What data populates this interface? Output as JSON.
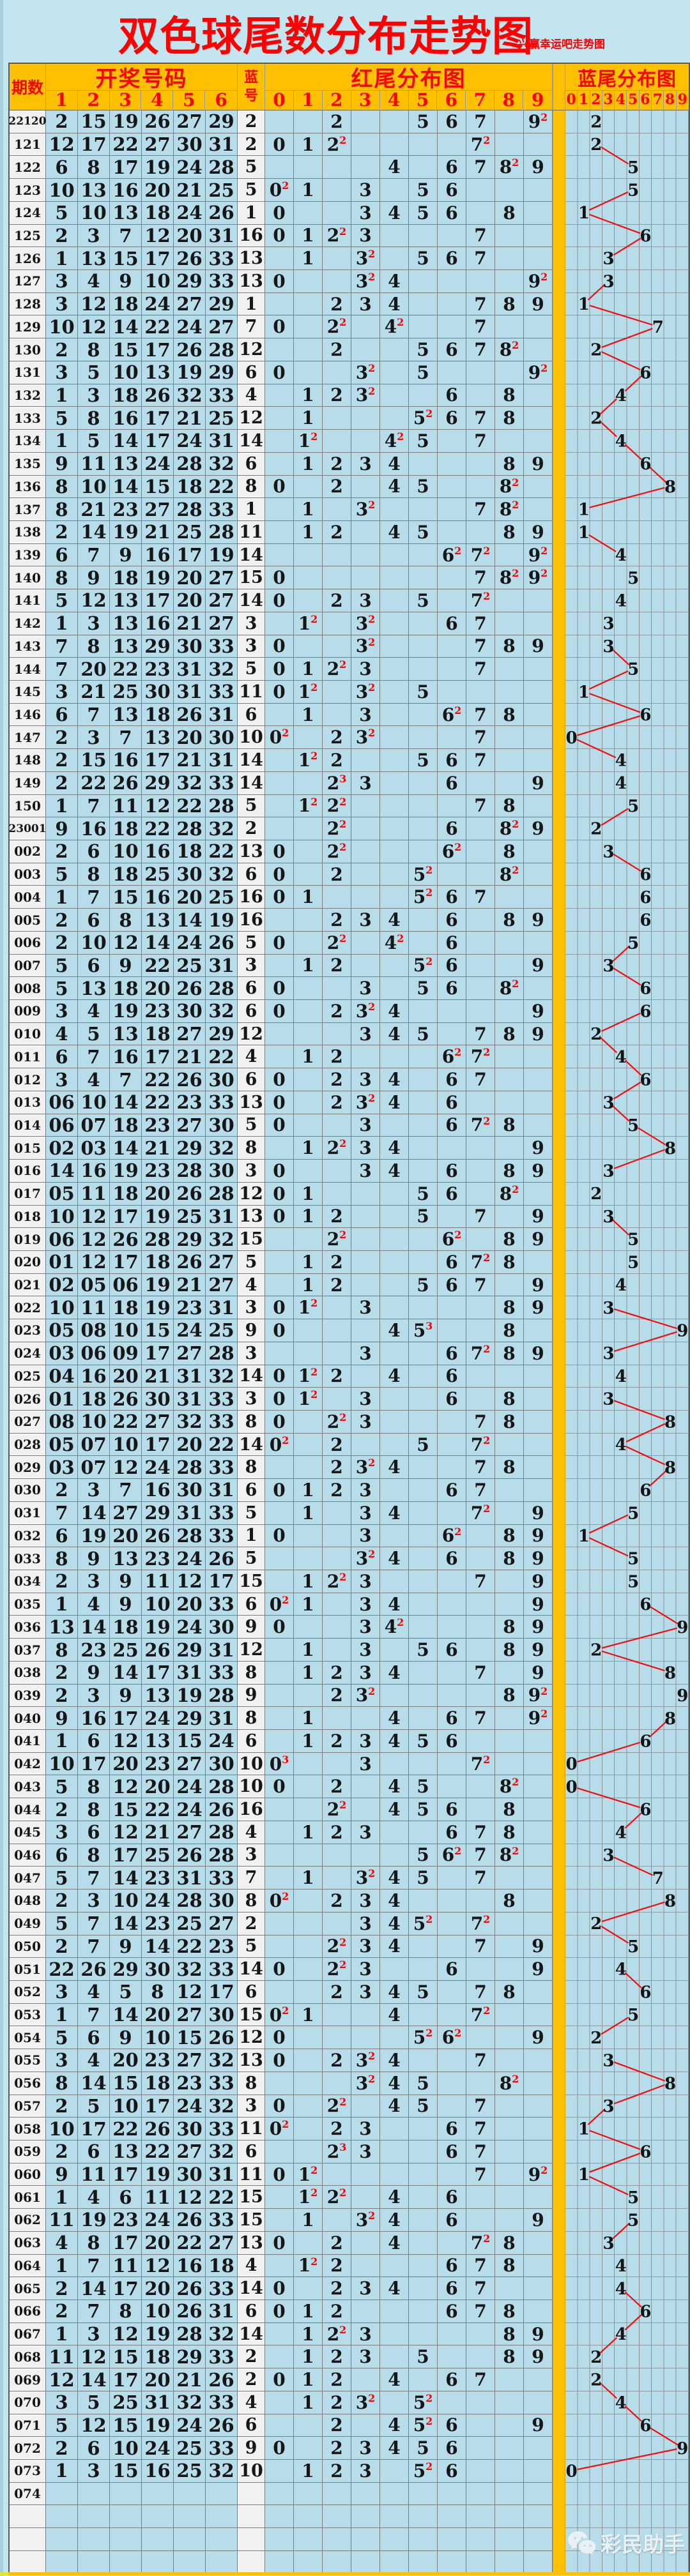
{
  "title": "双色球尾数分布走势图",
  "subtitle": "兴赢幸运吧走势图",
  "watermark": {
    "text": "彩民助手",
    "icon": "wechat-icon"
  },
  "colors": {
    "page_bg": "#c3e5ef",
    "cell_blue": "#b7dcea",
    "header_orange": "#fec101",
    "accent_red": "#fe0000",
    "light_cell": "#f1f1f1",
    "grid_gray": "#7d7d7d",
    "trend_line_red": "#f40b0b"
  },
  "table": {
    "headers": {
      "period": "期数",
      "winning_numbers": "开奖号码",
      "ball_columns": [
        "1",
        "2",
        "3",
        "4",
        "5",
        "6"
      ],
      "blue_number": "蓝号",
      "red_tail": "红尾分布图",
      "red_tail_columns": [
        "0",
        "1",
        "2",
        "3",
        "4",
        "5",
        "6",
        "7",
        "8",
        "9"
      ],
      "blue_tail": "蓝尾分布图",
      "blue_tail_columns": [
        "0",
        "1",
        "2",
        "3",
        "4",
        "5",
        "6",
        "7",
        "8",
        "9"
      ]
    }
  },
  "chart_data": {
    "type": "table",
    "title": "双色球尾数分布走势图",
    "rows_format": [
      "period",
      "red_balls_1_to_6",
      "blue_ball"
    ],
    "rows": [
      [
        "22120",
        [
          "2",
          "15",
          "19",
          "26",
          "27",
          "29"
        ],
        "2"
      ],
      [
        "121",
        [
          "12",
          "17",
          "22",
          "27",
          "30",
          "31"
        ],
        "2"
      ],
      [
        "122",
        [
          "6",
          "8",
          "17",
          "19",
          "24",
          "28"
        ],
        "5"
      ],
      [
        "123",
        [
          "10",
          "13",
          "16",
          "20",
          "21",
          "25"
        ],
        "5"
      ],
      [
        "124",
        [
          "5",
          "10",
          "13",
          "18",
          "24",
          "26"
        ],
        "1"
      ],
      [
        "125",
        [
          "2",
          "3",
          "7",
          "12",
          "20",
          "31"
        ],
        "16"
      ],
      [
        "126",
        [
          "1",
          "13",
          "15",
          "17",
          "26",
          "33"
        ],
        "13"
      ],
      [
        "127",
        [
          "3",
          "4",
          "9",
          "10",
          "29",
          "33"
        ],
        "13"
      ],
      [
        "128",
        [
          "3",
          "12",
          "18",
          "24",
          "27",
          "29"
        ],
        "1"
      ],
      [
        "129",
        [
          "10",
          "12",
          "14",
          "22",
          "24",
          "27"
        ],
        "7"
      ],
      [
        "130",
        [
          "2",
          "8",
          "15",
          "17",
          "26",
          "28"
        ],
        "12"
      ],
      [
        "131",
        [
          "3",
          "5",
          "10",
          "13",
          "19",
          "29"
        ],
        "6"
      ],
      [
        "132",
        [
          "1",
          "3",
          "18",
          "26",
          "32",
          "33"
        ],
        "4"
      ],
      [
        "133",
        [
          "5",
          "8",
          "16",
          "17",
          "21",
          "25"
        ],
        "12"
      ],
      [
        "134",
        [
          "1",
          "5",
          "14",
          "17",
          "24",
          "31"
        ],
        "14"
      ],
      [
        "135",
        [
          "9",
          "11",
          "13",
          "24",
          "28",
          "32"
        ],
        "6"
      ],
      [
        "136",
        [
          "8",
          "10",
          "14",
          "15",
          "18",
          "22"
        ],
        "8"
      ],
      [
        "137",
        [
          "8",
          "21",
          "23",
          "27",
          "28",
          "33"
        ],
        "1"
      ],
      [
        "138",
        [
          "2",
          "14",
          "19",
          "21",
          "25",
          "28"
        ],
        "11"
      ],
      [
        "139",
        [
          "6",
          "7",
          "9",
          "16",
          "17",
          "19"
        ],
        "14"
      ],
      [
        "140",
        [
          "8",
          "9",
          "18",
          "19",
          "20",
          "27"
        ],
        "15"
      ],
      [
        "141",
        [
          "5",
          "12",
          "13",
          "17",
          "20",
          "27"
        ],
        "14"
      ],
      [
        "142",
        [
          "1",
          "3",
          "13",
          "16",
          "21",
          "27"
        ],
        "3"
      ],
      [
        "143",
        [
          "7",
          "8",
          "13",
          "29",
          "30",
          "33"
        ],
        "3"
      ],
      [
        "144",
        [
          "7",
          "20",
          "22",
          "23",
          "31",
          "32"
        ],
        "5"
      ],
      [
        "145",
        [
          "3",
          "21",
          "25",
          "30",
          "31",
          "33"
        ],
        "11"
      ],
      [
        "146",
        [
          "6",
          "7",
          "13",
          "18",
          "26",
          "31"
        ],
        "6"
      ],
      [
        "147",
        [
          "2",
          "3",
          "7",
          "13",
          "20",
          "30"
        ],
        "10"
      ],
      [
        "148",
        [
          "2",
          "15",
          "16",
          "17",
          "21",
          "31"
        ],
        "14"
      ],
      [
        "149",
        [
          "2",
          "22",
          "26",
          "29",
          "32",
          "33"
        ],
        "14"
      ],
      [
        "150",
        [
          "1",
          "7",
          "11",
          "12",
          "22",
          "28"
        ],
        "5"
      ],
      [
        "23001",
        [
          "9",
          "16",
          "18",
          "22",
          "28",
          "32"
        ],
        "2"
      ],
      [
        "002",
        [
          "2",
          "6",
          "10",
          "16",
          "18",
          "22"
        ],
        "13"
      ],
      [
        "003",
        [
          "5",
          "8",
          "18",
          "25",
          "30",
          "32"
        ],
        "6"
      ],
      [
        "004",
        [
          "1",
          "7",
          "15",
          "16",
          "20",
          "25"
        ],
        "16"
      ],
      [
        "005",
        [
          "2",
          "6",
          "8",
          "13",
          "14",
          "19"
        ],
        "16"
      ],
      [
        "006",
        [
          "2",
          "10",
          "12",
          "14",
          "24",
          "26"
        ],
        "5"
      ],
      [
        "007",
        [
          "5",
          "6",
          "9",
          "22",
          "25",
          "31"
        ],
        "3"
      ],
      [
        "008",
        [
          "5",
          "13",
          "18",
          "20",
          "26",
          "28"
        ],
        "6"
      ],
      [
        "009",
        [
          "3",
          "4",
          "19",
          "23",
          "30",
          "32"
        ],
        "6"
      ],
      [
        "010",
        [
          "4",
          "5",
          "13",
          "18",
          "27",
          "29"
        ],
        "12"
      ],
      [
        "011",
        [
          "6",
          "7",
          "16",
          "17",
          "21",
          "22"
        ],
        "4"
      ],
      [
        "012",
        [
          "3",
          "4",
          "7",
          "22",
          "26",
          "30"
        ],
        "6"
      ],
      [
        "013",
        [
          "06",
          "10",
          "14",
          "22",
          "23",
          "33"
        ],
        "13"
      ],
      [
        "014",
        [
          "06",
          "07",
          "18",
          "23",
          "27",
          "30"
        ],
        "5"
      ],
      [
        "015",
        [
          "02",
          "03",
          "14",
          "21",
          "29",
          "32"
        ],
        "8"
      ],
      [
        "016",
        [
          "14",
          "16",
          "19",
          "23",
          "28",
          "30"
        ],
        "3"
      ],
      [
        "017",
        [
          "05",
          "11",
          "18",
          "20",
          "26",
          "28"
        ],
        "12"
      ],
      [
        "018",
        [
          "10",
          "12",
          "17",
          "19",
          "25",
          "31"
        ],
        "13"
      ],
      [
        "019",
        [
          "06",
          "12",
          "26",
          "28",
          "29",
          "32"
        ],
        "15"
      ],
      [
        "020",
        [
          "01",
          "12",
          "17",
          "18",
          "26",
          "27"
        ],
        "5"
      ],
      [
        "021",
        [
          "02",
          "05",
          "06",
          "19",
          "21",
          "27"
        ],
        "4"
      ],
      [
        "022",
        [
          "10",
          "11",
          "18",
          "19",
          "23",
          "31"
        ],
        "3"
      ],
      [
        "023",
        [
          "05",
          "08",
          "10",
          "15",
          "24",
          "25"
        ],
        "9"
      ],
      [
        "024",
        [
          "03",
          "06",
          "09",
          "17",
          "27",
          "28"
        ],
        "3"
      ],
      [
        "025",
        [
          "04",
          "16",
          "20",
          "21",
          "31",
          "32"
        ],
        "14"
      ],
      [
        "026",
        [
          "01",
          "18",
          "26",
          "30",
          "31",
          "33"
        ],
        "3"
      ],
      [
        "027",
        [
          "08",
          "10",
          "22",
          "27",
          "32",
          "33"
        ],
        "8"
      ],
      [
        "028",
        [
          "05",
          "07",
          "10",
          "17",
          "20",
          "22"
        ],
        "14"
      ],
      [
        "029",
        [
          "03",
          "07",
          "12",
          "24",
          "28",
          "33"
        ],
        "8"
      ],
      [
        "030",
        [
          "2",
          "3",
          "7",
          "16",
          "30",
          "31"
        ],
        "6"
      ],
      [
        "031",
        [
          "7",
          "14",
          "27",
          "29",
          "31",
          "33"
        ],
        "5"
      ],
      [
        "032",
        [
          "6",
          "19",
          "20",
          "26",
          "28",
          "33"
        ],
        "1"
      ],
      [
        "033",
        [
          "8",
          "9",
          "13",
          "23",
          "24",
          "26"
        ],
        "5"
      ],
      [
        "034",
        [
          "2",
          "3",
          "9",
          "11",
          "12",
          "17"
        ],
        "15"
      ],
      [
        "035",
        [
          "1",
          "4",
          "9",
          "10",
          "20",
          "33"
        ],
        "6"
      ],
      [
        "036",
        [
          "13",
          "14",
          "18",
          "19",
          "24",
          "30"
        ],
        "9"
      ],
      [
        "037",
        [
          "8",
          "23",
          "25",
          "26",
          "29",
          "31"
        ],
        "12"
      ],
      [
        "038",
        [
          "2",
          "9",
          "14",
          "17",
          "31",
          "33"
        ],
        "8"
      ],
      [
        "039",
        [
          "2",
          "3",
          "9",
          "13",
          "19",
          "28"
        ],
        "9"
      ],
      [
        "040",
        [
          "9",
          "16",
          "17",
          "24",
          "29",
          "31"
        ],
        "8"
      ],
      [
        "041",
        [
          "1",
          "6",
          "12",
          "13",
          "15",
          "24"
        ],
        "6"
      ],
      [
        "042",
        [
          "10",
          "17",
          "20",
          "23",
          "27",
          "30"
        ],
        "10"
      ],
      [
        "043",
        [
          "5",
          "8",
          "12",
          "20",
          "24",
          "28"
        ],
        "10"
      ],
      [
        "044",
        [
          "2",
          "8",
          "15",
          "22",
          "24",
          "26"
        ],
        "16"
      ],
      [
        "045",
        [
          "3",
          "6",
          "12",
          "21",
          "27",
          "28"
        ],
        "4"
      ],
      [
        "046",
        [
          "6",
          "8",
          "17",
          "25",
          "26",
          "28"
        ],
        "3"
      ],
      [
        "047",
        [
          "5",
          "7",
          "14",
          "23",
          "31",
          "33"
        ],
        "7"
      ],
      [
        "048",
        [
          "2",
          "3",
          "10",
          "24",
          "28",
          "30"
        ],
        "8"
      ],
      [
        "049",
        [
          "5",
          "7",
          "14",
          "23",
          "25",
          "27"
        ],
        "2"
      ],
      [
        "050",
        [
          "2",
          "7",
          "9",
          "14",
          "22",
          "23"
        ],
        "5"
      ],
      [
        "051",
        [
          "22",
          "26",
          "29",
          "30",
          "32",
          "33"
        ],
        "14"
      ],
      [
        "052",
        [
          "3",
          "4",
          "5",
          "8",
          "12",
          "17"
        ],
        "6"
      ],
      [
        "053",
        [
          "1",
          "7",
          "14",
          "20",
          "27",
          "30"
        ],
        "15"
      ],
      [
        "054",
        [
          "5",
          "6",
          "9",
          "10",
          "15",
          "26"
        ],
        "12"
      ],
      [
        "055",
        [
          "3",
          "4",
          "20",
          "23",
          "27",
          "32"
        ],
        "13"
      ],
      [
        "056",
        [
          "8",
          "14",
          "15",
          "18",
          "23",
          "33"
        ],
        "8"
      ],
      [
        "057",
        [
          "2",
          "5",
          "10",
          "17",
          "24",
          "32"
        ],
        "3"
      ],
      [
        "058",
        [
          "10",
          "17",
          "22",
          "26",
          "30",
          "33"
        ],
        "11"
      ],
      [
        "059",
        [
          "2",
          "6",
          "13",
          "22",
          "27",
          "32"
        ],
        "6"
      ],
      [
        "060",
        [
          "9",
          "11",
          "17",
          "19",
          "30",
          "31"
        ],
        "11"
      ],
      [
        "061",
        [
          "1",
          "4",
          "6",
          "11",
          "12",
          "22"
        ],
        "15"
      ],
      [
        "062",
        [
          "11",
          "19",
          "23",
          "24",
          "26",
          "33"
        ],
        "15"
      ],
      [
        "063",
        [
          "4",
          "8",
          "17",
          "20",
          "22",
          "27"
        ],
        "13"
      ],
      [
        "064",
        [
          "1",
          "7",
          "11",
          "12",
          "16",
          "18"
        ],
        "4"
      ],
      [
        "065",
        [
          "2",
          "14",
          "17",
          "20",
          "26",
          "33"
        ],
        "14"
      ],
      [
        "066",
        [
          "2",
          "7",
          "8",
          "10",
          "26",
          "31"
        ],
        "6"
      ],
      [
        "067",
        [
          "1",
          "3",
          "12",
          "19",
          "28",
          "32"
        ],
        "14"
      ],
      [
        "068",
        [
          "11",
          "12",
          "15",
          "18",
          "29",
          "33"
        ],
        "2"
      ],
      [
        "069",
        [
          "12",
          "14",
          "17",
          "20",
          "21",
          "26"
        ],
        "2"
      ],
      [
        "070",
        [
          "3",
          "5",
          "25",
          "31",
          "32",
          "33"
        ],
        "4"
      ],
      [
        "071",
        [
          "5",
          "12",
          "15",
          "19",
          "24",
          "26"
        ],
        "6"
      ],
      [
        "072",
        [
          "2",
          "6",
          "10",
          "24",
          "25",
          "33"
        ],
        "9"
      ],
      [
        "073",
        [
          "1",
          "3",
          "15",
          "16",
          "25",
          "32"
        ],
        "10"
      ],
      [
        "074",
        [],
        null
      ]
    ],
    "trailing_empty_rows": 3
  }
}
